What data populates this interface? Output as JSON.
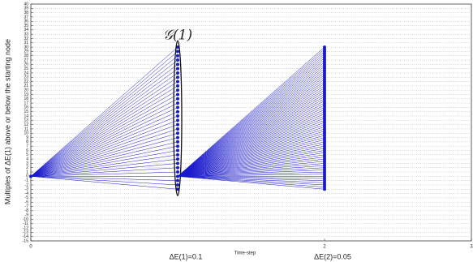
{
  "chart_data": {
    "type": "lattice",
    "ylabel": "Multiples of ΔE(1) above or below the starting node",
    "xlabel": "Time-step",
    "xlim": [
      0,
      3
    ],
    "xticks": [
      0,
      2,
      3
    ],
    "ylim": [
      -15,
      40
    ],
    "yticks": [
      -15,
      -14,
      -13,
      -12,
      -11,
      -10,
      -9,
      -8,
      -7,
      -6,
      -5,
      -4,
      -3,
      -2,
      -1,
      0,
      1,
      2,
      3,
      4,
      5,
      6,
      7,
      8,
      9,
      10,
      11,
      12,
      13,
      14,
      15,
      16,
      17,
      18,
      19,
      20,
      21,
      22,
      23,
      24,
      25,
      26,
      27,
      28,
      29,
      30,
      31,
      32,
      33,
      34,
      35,
      36,
      37,
      38,
      39,
      40
    ],
    "grid": true,
    "color": "#1a1acc",
    "root": {
      "x": 0,
      "value": 0
    },
    "levels": [
      {
        "x": 1,
        "from": [
          0,
          0
        ],
        "label": "ΔE(1)=0.1",
        "group_label": "𝒢(1)",
        "values": [
          -3,
          -2,
          -1,
          0,
          1,
          2,
          3,
          4,
          5,
          6,
          7,
          8,
          9,
          10,
          11,
          12,
          13,
          14,
          15,
          16,
          17,
          18,
          19,
          20,
          21,
          22,
          23,
          24,
          25,
          26,
          27,
          28,
          29,
          30
        ]
      },
      {
        "x": 2,
        "from": [
          1,
          0
        ],
        "label": "ΔE(2)=0.05",
        "values": [
          -3,
          -2.5,
          -2,
          -1.5,
          -1,
          -0.5,
          0,
          0.5,
          1,
          1.5,
          2,
          2.5,
          3,
          3.5,
          4,
          4.5,
          5,
          5.5,
          6,
          6.5,
          7,
          7.5,
          8,
          8.5,
          9,
          9.5,
          10,
          10.5,
          11,
          11.5,
          12,
          12.5,
          13,
          13.5,
          14,
          14.5,
          15,
          15.5,
          16,
          16.5,
          17,
          17.5,
          18,
          18.5,
          19,
          19.5,
          20,
          20.5,
          21,
          21.5,
          22,
          22.5,
          23,
          23.5,
          24,
          24.5,
          25,
          25.5,
          26,
          26.5,
          27,
          27.5,
          28,
          28.5,
          29,
          29.5,
          30
        ]
      }
    ]
  }
}
